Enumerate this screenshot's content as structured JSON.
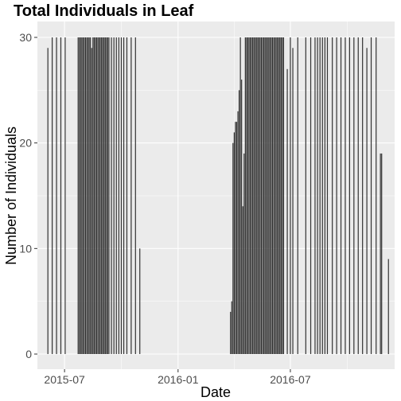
{
  "chart_data": {
    "type": "bar",
    "title": "Total Individuals in Leaf",
    "xlabel": "Date",
    "ylabel": "Number of Individuals",
    "ylim": [
      0,
      30
    ],
    "yticks": [
      0,
      10,
      20,
      30
    ],
    "xlim": [
      "2015-05-18",
      "2016-12-17"
    ],
    "xticks": [
      {
        "value": "2015-07-01",
        "label": "2015-07"
      },
      {
        "value": "2016-01-01",
        "label": "2016-01"
      },
      {
        "value": "2016-07-01",
        "label": "2016-07"
      }
    ],
    "grid": true,
    "colors": {
      "panel": "#ebebeb",
      "grid": "#ffffff",
      "bar": "#333333"
    },
    "x": [
      "2015-06-04",
      "2015-06-11",
      "2015-06-18",
      "2015-06-25",
      "2015-07-02",
      "2015-07-23",
      "2015-07-25",
      "2015-07-27",
      "2015-07-29",
      "2015-07-31",
      "2015-08-02",
      "2015-08-04",
      "2015-08-06",
      "2015-08-08",
      "2015-08-10",
      "2015-08-12",
      "2015-08-14",
      "2015-08-16",
      "2015-08-18",
      "2015-08-20",
      "2015-08-22",
      "2015-08-24",
      "2015-08-26",
      "2015-08-28",
      "2015-08-30",
      "2015-09-01",
      "2015-09-03",
      "2015-09-05",
      "2015-09-07",
      "2015-09-09",
      "2015-09-11",
      "2015-09-15",
      "2015-09-19",
      "2015-09-23",
      "2015-09-27",
      "2015-10-01",
      "2015-10-05",
      "2015-10-10",
      "2015-10-17",
      "2015-10-24",
      "2015-10-31",
      "2016-03-26",
      "2016-03-28",
      "2016-03-30",
      "2016-04-01",
      "2016-04-03",
      "2016-04-05",
      "2016-04-07",
      "2016-04-09",
      "2016-04-11",
      "2016-04-13",
      "2016-04-15",
      "2016-04-17",
      "2016-04-19",
      "2016-04-21",
      "2016-04-23",
      "2016-04-25",
      "2016-04-27",
      "2016-04-29",
      "2016-05-01",
      "2016-05-03",
      "2016-05-05",
      "2016-05-07",
      "2016-05-09",
      "2016-05-11",
      "2016-05-13",
      "2016-05-15",
      "2016-05-17",
      "2016-05-19",
      "2016-05-21",
      "2016-05-23",
      "2016-05-25",
      "2016-05-27",
      "2016-05-29",
      "2016-05-31",
      "2016-06-02",
      "2016-06-04",
      "2016-06-06",
      "2016-06-08",
      "2016-06-10",
      "2016-06-12",
      "2016-06-14",
      "2016-06-16",
      "2016-06-18",
      "2016-06-20",
      "2016-06-26",
      "2016-07-01",
      "2016-07-05",
      "2016-07-13",
      "2016-07-26",
      "2016-08-03",
      "2016-08-10",
      "2016-08-14",
      "2016-08-18",
      "2016-08-22",
      "2016-08-26",
      "2016-08-30",
      "2016-09-07",
      "2016-09-14",
      "2016-09-21",
      "2016-09-28",
      "2016-10-05",
      "2016-10-12",
      "2016-10-19",
      "2016-10-26",
      "2016-11-02",
      "2016-11-09",
      "2016-11-17",
      "2016-11-24",
      "2016-11-26",
      "2016-12-07"
    ],
    "values": [
      29,
      30,
      30,
      30,
      30,
      30,
      30,
      30,
      30,
      30,
      30,
      30,
      30,
      30,
      30,
      30,
      29,
      30,
      30,
      30,
      30,
      30,
      30,
      30,
      30,
      30,
      30,
      30,
      30,
      30,
      30,
      30,
      30,
      30,
      30,
      30,
      30,
      30,
      30,
      30,
      10,
      4,
      5,
      20,
      21,
      22,
      22,
      23,
      25,
      30,
      26,
      14,
      19,
      30,
      30,
      30,
      30,
      30,
      30,
      30,
      30,
      30,
      30,
      30,
      30,
      30,
      30,
      30,
      30,
      30,
      30,
      30,
      30,
      30,
      30,
      30,
      30,
      30,
      30,
      30,
      30,
      30,
      30,
      30,
      30,
      27,
      30,
      29,
      30,
      30,
      30,
      30,
      30,
      30,
      30,
      30,
      30,
      30,
      30,
      30,
      30,
      30,
      30,
      30,
      30,
      29,
      30,
      30,
      19,
      19,
      9
    ]
  }
}
